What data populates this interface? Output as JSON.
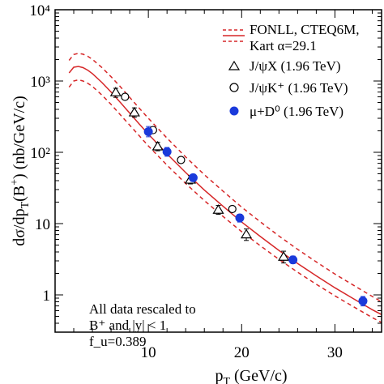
{
  "chart_data": {
    "type": "scatter",
    "title": "",
    "xlabel": "p_T (GeV/c)",
    "ylabel": "dσ/dp_T(B⁺) (nb/GeV/c)",
    "xlim": [
      0,
      35
    ],
    "ylim": [
      0.3,
      10000
    ],
    "yscale": "log",
    "grid": false,
    "legend_position": "top-right",
    "x_ticks": [
      10,
      20,
      30
    ],
    "x_tick_labels": [
      "10",
      "20",
      "30"
    ],
    "y_ticks": [
      1,
      10,
      100,
      1000,
      10000
    ],
    "y_tick_labels": [
      "1",
      "10",
      "10²",
      "10³",
      "10⁴"
    ],
    "legend": {
      "theory_line1": "FONLL, CTEQ6M,",
      "theory_line2": "Kart α=29.1",
      "s1": "J/ψX   (1.96 TeV)",
      "s2": "J/ψK⁺ (1.96 TeV)",
      "s3": "μ+D⁰  (1.96 TeV)"
    },
    "note": {
      "line1": "All data rescaled to",
      "line2": "B⁺ and |y| < 1",
      "line3": "f_u=0.389"
    },
    "theory": {
      "central": {
        "x": [
          1.5,
          2.0,
          2.5,
          3.0,
          3.5,
          4.0,
          5.0,
          6.0,
          7.0,
          8.0,
          9.0,
          10.0,
          12.0,
          14.0,
          16.0,
          18.0,
          20.0,
          22.0,
          24.0,
          26.0,
          28.0,
          30.0,
          32.0,
          34.0,
          35.0
        ],
        "y": [
          1300,
          1560,
          1600,
          1540,
          1420,
          1270,
          960,
          700,
          500,
          355,
          252,
          180,
          95,
          52,
          29.5,
          17.5,
          10.5,
          6.6,
          4.2,
          2.75,
          1.85,
          1.26,
          0.88,
          0.62,
          0.53
        ]
      },
      "upper": {
        "x": [
          1.5,
          2.0,
          2.5,
          3.0,
          3.5,
          4.0,
          5.0,
          6.0,
          7.0,
          8.0,
          9.0,
          10.0,
          12.0,
          14.0,
          16.0,
          18.0,
          20.0,
          22.0,
          24.0,
          26.0,
          28.0,
          30.0,
          32.0,
          34.0,
          35.0
        ],
        "y": [
          1950,
          2350,
          2450,
          2380,
          2220,
          2010,
          1550,
          1150,
          830,
          590,
          420,
          300,
          158,
          86,
          48.5,
          28.5,
          17.0,
          10.6,
          6.7,
          4.35,
          2.9,
          1.96,
          1.36,
          0.95,
          0.8
        ]
      },
      "lower": {
        "x": [
          1.5,
          2.0,
          2.5,
          3.0,
          3.5,
          4.0,
          5.0,
          6.0,
          7.0,
          8.0,
          9.0,
          10.0,
          12.0,
          14.0,
          16.0,
          18.0,
          20.0,
          22.0,
          24.0,
          26.0,
          28.0,
          30.0,
          32.0,
          34.0,
          35.0
        ],
        "y": [
          820,
          1000,
          1040,
          1000,
          930,
          840,
          640,
          470,
          335,
          240,
          172,
          123,
          66,
          36.5,
          21.0,
          12.6,
          7.7,
          4.9,
          3.15,
          2.08,
          1.41,
          0.97,
          0.68,
          0.48,
          0.41
        ]
      }
    },
    "series": [
      {
        "name": "J/ψX   (1.96 TeV)",
        "marker": "triangle-open",
        "x": [
          6.5,
          8.5,
          11.0,
          14.5,
          17.5,
          20.5,
          24.5
        ],
        "y": [
          690,
          360,
          120,
          41,
          15.5,
          7.0,
          3.4
        ],
        "err_lo": [
          590,
          310,
          105,
          36,
          13.5,
          5.8,
          2.8
        ],
        "err_hi": [
          790,
          420,
          138,
          47,
          18,
          8.4,
          4.1
        ]
      },
      {
        "name": "J/ψK⁺ (1.96 TeV)",
        "marker": "circle-open",
        "x": [
          7.5,
          10.5,
          13.5,
          19.0
        ],
        "y": [
          600,
          205,
          78,
          16
        ],
        "err_lo": [
          555,
          190,
          72,
          14.8
        ],
        "err_hi": [
          650,
          222,
          85,
          17.4
        ]
      },
      {
        "name": "μ+D⁰  (1.96 TeV)",
        "marker": "circle-filled",
        "color": "#1a3adb",
        "x": [
          10.0,
          12.0,
          14.8,
          19.8,
          25.5,
          33.0
        ],
        "y": [
          195,
          102,
          44,
          12,
          3.1,
          0.82
        ],
        "err_lo": [
          165,
          88,
          39,
          10.5,
          2.75,
          0.7
        ],
        "err_hi": [
          230,
          117,
          49,
          13.5,
          3.5,
          0.95
        ]
      }
    ],
    "colors": {
      "theory": "#d62728",
      "data_open": "#000000",
      "data_filled": "#1a3adb"
    }
  }
}
